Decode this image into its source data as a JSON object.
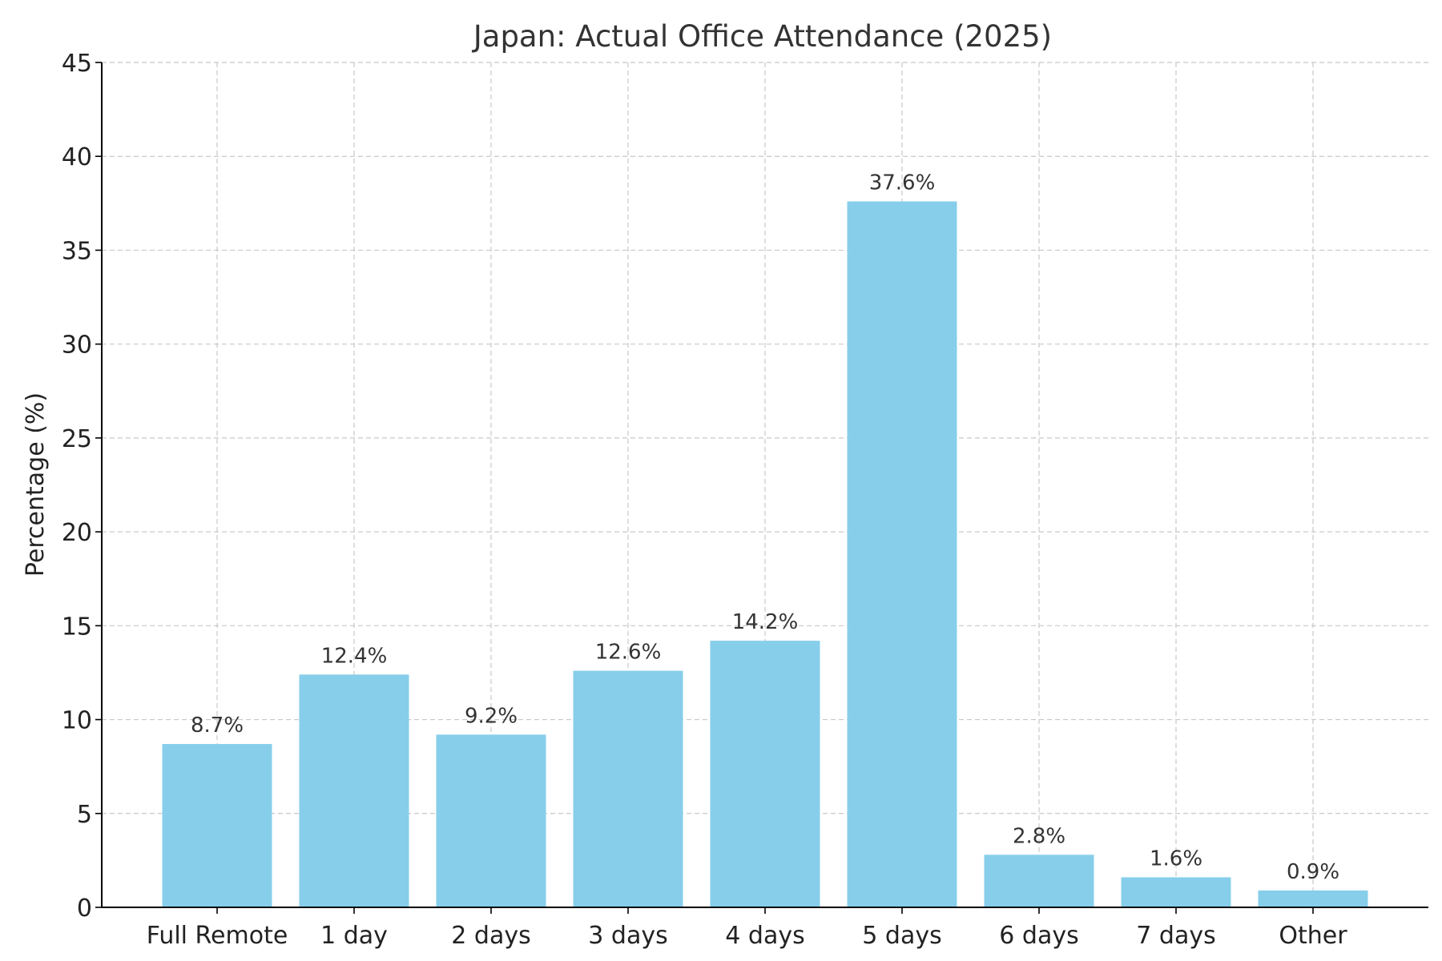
{
  "chart_data": {
    "type": "bar",
    "title": "Japan: Actual Office Attendance (2025)",
    "xlabel": "",
    "ylabel": "Percentage (%)",
    "categories": [
      "Full Remote",
      "1 day",
      "2 days",
      "3 days",
      "4 days",
      "5 days",
      "6 days",
      "7 days",
      "Other"
    ],
    "values": [
      8.7,
      12.4,
      9.2,
      12.6,
      14.2,
      37.6,
      2.8,
      1.6,
      0.9
    ],
    "data_labels": [
      "8.7%",
      "12.4%",
      "9.2%",
      "12.6%",
      "14.2%",
      "37.6%",
      "2.8%",
      "1.6%",
      "0.9%"
    ],
    "ylim": [
      0,
      45
    ],
    "yticks": [
      0,
      5,
      10,
      15,
      20,
      25,
      30,
      35,
      40,
      45
    ],
    "grid": true,
    "bar_color": "#87CEEB"
  }
}
